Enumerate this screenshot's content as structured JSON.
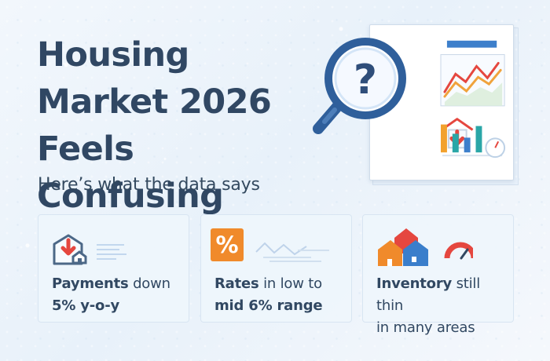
{
  "header": {
    "title": "Housing Market 2026 Feels Confusing",
    "subtitle": "Here’s what the data says"
  },
  "colors": {
    "title": "#304763",
    "background": "#eef5fc",
    "card_bg": "#eef5fc",
    "accent_red": "#e5473f",
    "accent_orange": "#f08a2b",
    "accent_teal": "#2aa6a7",
    "accent_blue": "#3a7ecb"
  },
  "illustration": {
    "question_mark": "?",
    "percent_sign": "%"
  },
  "cards": [
    {
      "icon": "house-down-arrow-icon",
      "label": "Payments",
      "text_line1": " down",
      "text_line2": "5% y-o-y"
    },
    {
      "icon": "percent-icon",
      "label": "Rates",
      "text_line1": " in low to",
      "text_line2": "mid 6% range"
    },
    {
      "icon": "houses-gauge-icon",
      "label": "Inventory",
      "text_line1": " still thin",
      "text_line2": "in many areas"
    }
  ]
}
